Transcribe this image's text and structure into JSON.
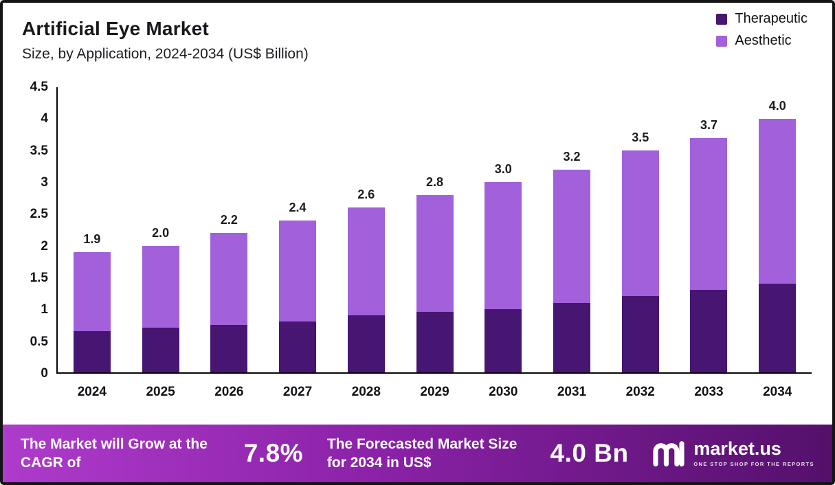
{
  "header": {
    "title": "Artificial Eye Market",
    "subtitle": "Size, by Application, 2024-2034 (US$ Billion)"
  },
  "legend": [
    {
      "label": "Therapeutic",
      "color": "#471572"
    },
    {
      "label": "Aesthetic",
      "color": "#a261db"
    }
  ],
  "chart_data": {
    "type": "bar",
    "stacked": true,
    "title": "Artificial Eye Market Size, by Application, 2024-2034 (US$ Billion)",
    "categories": [
      "2024",
      "2025",
      "2026",
      "2027",
      "2028",
      "2029",
      "2030",
      "2031",
      "2032",
      "2033",
      "2034"
    ],
    "series": [
      {
        "name": "Therapeutic",
        "color": "#471572",
        "values": [
          0.65,
          0.7,
          0.75,
          0.8,
          0.9,
          0.95,
          1.0,
          1.1,
          1.2,
          1.3,
          1.4
        ]
      },
      {
        "name": "Aesthetic",
        "color": "#a261db",
        "values": [
          1.25,
          1.3,
          1.45,
          1.6,
          1.7,
          1.85,
          2.0,
          2.1,
          2.3,
          2.4,
          2.6
        ]
      }
    ],
    "totals": [
      1.9,
      2.0,
      2.2,
      2.4,
      2.6,
      2.8,
      3.0,
      3.2,
      3.5,
      3.7,
      4.0
    ],
    "total_labels": [
      "1.9",
      "2.0",
      "2.2",
      "2.4",
      "2.6",
      "2.8",
      "3.0",
      "3.2",
      "3.5",
      "3.7",
      "4.0"
    ],
    "ylim": [
      0,
      4.5
    ],
    "yticks": [
      0,
      0.5,
      1,
      1.5,
      2,
      2.5,
      3,
      3.5,
      4,
      4.5
    ],
    "ytick_labels": [
      "0",
      "0.5",
      "1",
      "1.5",
      "2",
      "2.5",
      "3",
      "3.5",
      "4",
      "4.5"
    ],
    "grid": false,
    "legend_position": "top-right"
  },
  "banner": {
    "cagr_text": "The Market will Grow at the CAGR of",
    "cagr_value": "7.8%",
    "forecast_text": "The Forecasted Market Size for 2034 in US$",
    "forecast_value": "4.0 Bn",
    "brand": "market.us",
    "tagline": "ONE STOP SHOP FOR THE REPORTS"
  }
}
